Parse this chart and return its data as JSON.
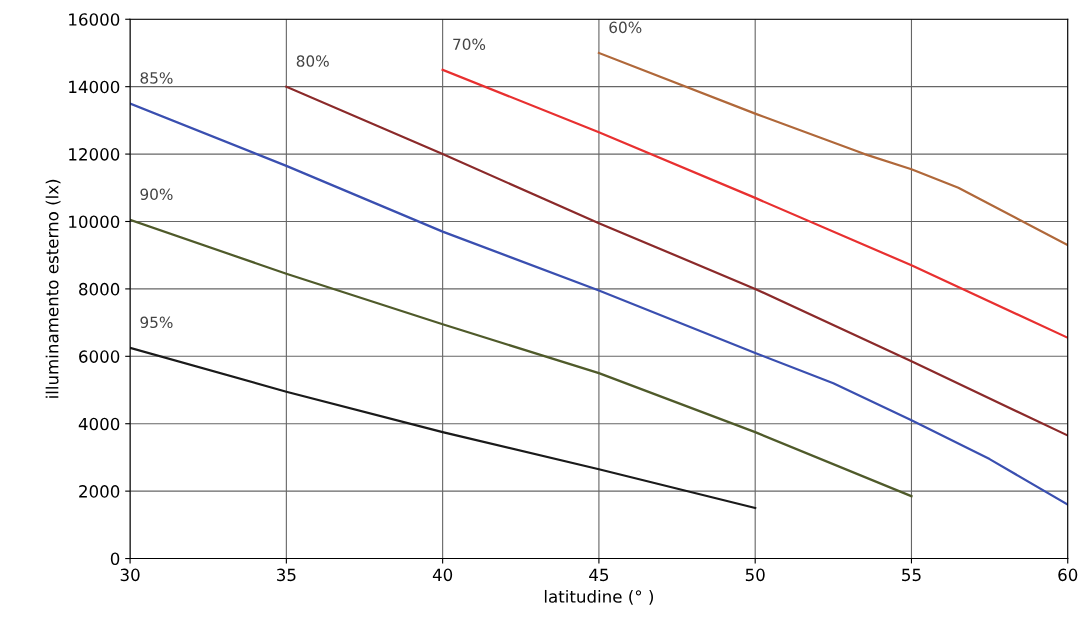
{
  "chart_data": {
    "type": "line",
    "xlabel": "latitudine (° )",
    "ylabel": "illuminamento esterno (lx)",
    "xlim": [
      30,
      60
    ],
    "ylim": [
      0,
      16000
    ],
    "xticks": [
      30,
      35,
      40,
      45,
      50,
      55,
      60
    ],
    "yticks": [
      0,
      2000,
      4000,
      6000,
      8000,
      10000,
      12000,
      14000,
      16000
    ],
    "grid": true,
    "legend": false,
    "marker": "none",
    "line_style": "solid",
    "series": [
      {
        "name": "95%",
        "color": "#1a1a1a",
        "x": [
          30,
          35,
          40,
          45,
          50
        ],
        "values": [
          6250,
          4950,
          3750,
          2650,
          1500
        ]
      },
      {
        "name": "90%",
        "color": "#4f5a2a",
        "x": [
          30,
          35,
          40,
          45,
          50,
          55
        ],
        "values": [
          10050,
          8450,
          6950,
          5500,
          3750,
          1850
        ]
      },
      {
        "name": "85%",
        "color": "#3a4fb0",
        "x": [
          30,
          35,
          40,
          45,
          50,
          52.5,
          55,
          57.5,
          60
        ],
        "values": [
          13500,
          11650,
          9700,
          7950,
          6100,
          5200,
          4100,
          2950,
          1600
        ]
      },
      {
        "name": "80%",
        "color": "#8b2a2a",
        "x": [
          35,
          40,
          45,
          50,
          55,
          60
        ],
        "values": [
          14000,
          12000,
          9950,
          8000,
          5850,
          3650
        ]
      },
      {
        "name": "70%",
        "color": "#e83030",
        "x": [
          40,
          45,
          50,
          55,
          60
        ],
        "values": [
          14500,
          12650,
          10700,
          8700,
          6550
        ]
      },
      {
        "name": "60%",
        "color": "#b0683a",
        "x": [
          45,
          50,
          53.5,
          55,
          56.5,
          60
        ],
        "values": [
          15000,
          13200,
          12000,
          11550,
          11000,
          9300
        ]
      }
    ]
  }
}
